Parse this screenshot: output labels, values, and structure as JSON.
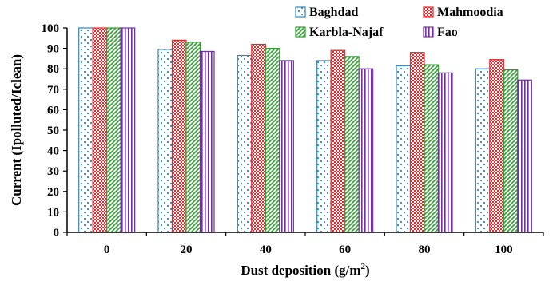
{
  "chart_data": {
    "type": "bar",
    "title": "",
    "xlabel": "Dust deposition (g/m",
    "xlabel_sup": "2",
    "xlabel_close": ")",
    "ylabel": "Current (Ipolluted/Iclean)",
    "ylim": [
      0,
      100
    ],
    "yticks": [
      0,
      10,
      20,
      30,
      40,
      50,
      60,
      70,
      80,
      90,
      100
    ],
    "categories": [
      "0",
      "20",
      "40",
      "60",
      "80",
      "100"
    ],
    "grid": false,
    "legend_position": "top-right",
    "series": [
      {
        "name": "Baghdad",
        "values": [
          100,
          89.5,
          86.5,
          84,
          81.5,
          80
        ],
        "color": "#2e86c1",
        "pattern": "dots"
      },
      {
        "name": "Mahmoodia",
        "values": [
          100,
          94,
          92,
          89,
          88,
          84.5
        ],
        "color": "#e8262a",
        "pattern": "checker"
      },
      {
        "name": "Karbla-Najaf",
        "values": [
          100,
          93,
          90,
          86,
          82,
          79.5
        ],
        "color": "#2ca02c",
        "pattern": "diagonal"
      },
      {
        "name": "Fao",
        "values": [
          100,
          88.5,
          84,
          80,
          78,
          74.5
        ],
        "color": "#7030a0",
        "pattern": "vertical"
      }
    ]
  }
}
